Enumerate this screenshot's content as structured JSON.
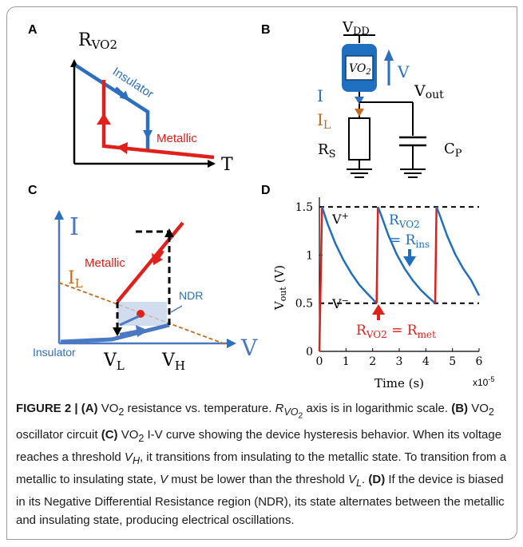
{
  "panels": {
    "a": {
      "letter": "A",
      "y_axis": "R",
      "y_axis_sub": "VO2",
      "x_axis": "T",
      "insulator_label": "Insulator",
      "metallic_label": "Metallic"
    },
    "b": {
      "letter": "B",
      "vdd": "V",
      "vdd_sub": "DD",
      "device": "VO",
      "device_sub": "2",
      "v_label": "V",
      "i_label": "I",
      "il_label": "I",
      "il_sub": "L",
      "vout": "V",
      "vout_sub": "out",
      "rs": "R",
      "rs_sub": "S",
      "cp": "C",
      "cp_sub": "P"
    },
    "c": {
      "letter": "C",
      "y_axis": "I",
      "x_axis": "V",
      "il": "I",
      "il_sub": "L",
      "metallic_label": "Metallic",
      "ndr_label": "NDR",
      "insulator_label": "Insulator",
      "vl": "V",
      "vl_sub": "L",
      "vh": "V",
      "vh_sub": "H"
    },
    "d": {
      "letter": "D",
      "y_axis": "V",
      "y_axis_sub": "out",
      "y_axis_unit": " (V)",
      "x_axis": "Time (s)",
      "x_multiplier": "x10",
      "x_multiplier_exp": "-5",
      "y_ticks": [
        "0",
        "0.5",
        "1",
        "1.5"
      ],
      "x_ticks": [
        "0",
        "1",
        "2",
        "3",
        "4",
        "5",
        "6"
      ],
      "vplus": "V",
      "vplus_sup": "+",
      "vminus": "V",
      "vminus_sup": "−",
      "rvo2_ins_r": "R",
      "rvo2_ins_sub": "VO2",
      "rvo2_ins_eq": "= R",
      "rvo2_ins_eq_sub": "ins",
      "rvo2_met_r": "R",
      "rvo2_met_sub": "VO2",
      "rvo2_met_eq": " = R",
      "rvo2_met_eq_sub": "met"
    }
  },
  "chart_data": {
    "type": "line",
    "title": "",
    "xlabel": "Time (s)",
    "ylabel": "Vout (V)",
    "x_scale_label": "x10^-5",
    "xlim": [
      0,
      6
    ],
    "ylim": [
      0,
      1.6
    ],
    "thresholds": {
      "V+": 1.5,
      "V-": 0.5
    },
    "series": [
      {
        "x": [
          0,
          0.1,
          0.3,
          0.6,
          0.9,
          1.2,
          1.5,
          1.8,
          2.15,
          2.2,
          2.3,
          2.6,
          2.9,
          3.2,
          3.5,
          3.8,
          4.1,
          4.35,
          4.4,
          4.5,
          4.8,
          5.1,
          5.4,
          5.7,
          6.0
        ],
        "y": [
          0,
          1.5,
          1.33,
          1.12,
          0.95,
          0.81,
          0.69,
          0.6,
          0.5,
          1.5,
          1.43,
          1.2,
          1.01,
          0.86,
          0.74,
          0.64,
          0.56,
          0.5,
          1.5,
          1.43,
          1.2,
          1.01,
          0.86,
          0.74,
          0.58
        ]
      }
    ],
    "colors": {
      "decay": "#1f6fc0",
      "jump": "#e0201b",
      "threshold": "#000000"
    }
  },
  "caption": {
    "fig_label": "FIGURE 2 | ",
    "a_tag": "(A)",
    "a_text_1": " VO",
    "a_sub": "2",
    "a_text_2": " resistance vs. temperature. ",
    "a_r": "R",
    "a_r_sub": "VO",
    "a_r_sub2": "2",
    "a_text_3": " axis is in logarithmic scale. ",
    "b_tag": "(B)",
    "b_text_1": " VO",
    "b_sub": "2",
    "b_text_2": " oscillator circuit ",
    "c_tag": "(C)",
    "c_text_1": " VO",
    "c_sub": "2",
    "c_text_2": " I-V curve showing the device hysteresis behavior. When its voltage reaches a threshold ",
    "c_vh": "V",
    "c_vh_sub": "H",
    "c_text_3": ", it transitions from insulating to the metallic state. To transition from a metallic to insulating state, ",
    "c_v": "V",
    "c_text_4": " must be lower than the threshold ",
    "c_vl": "V",
    "c_vl_sub": "L",
    "c_text_5": ". ",
    "d_tag": "(D)",
    "d_text": " If the device is biased in its Negative Differential Resistance region (NDR), its state alternates between the metallic and insulating state, producing electrical oscillations."
  }
}
